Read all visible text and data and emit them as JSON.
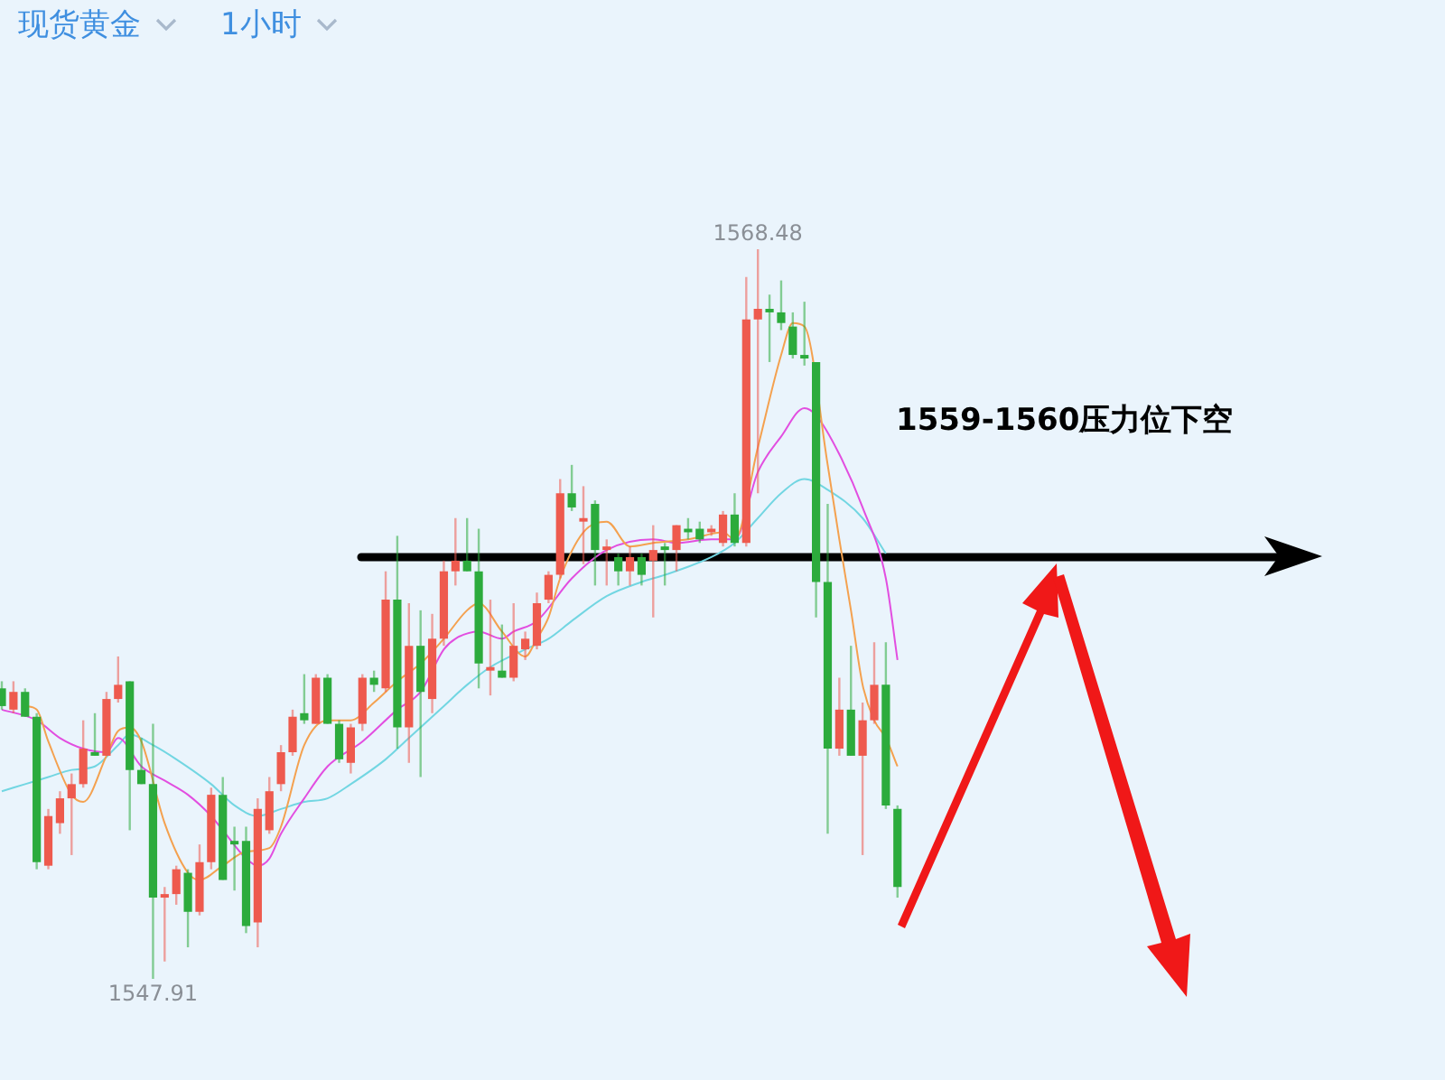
{
  "chart_data": {
    "type": "candlestick",
    "title": "现货黄金",
    "subtitle": "1小时",
    "categories": [
      null,
      null,
      null,
      null,
      null,
      null,
      null,
      null,
      null,
      null,
      null,
      null,
      null,
      null,
      null,
      null,
      null,
      null,
      null,
      null,
      null,
      null,
      null,
      null,
      null,
      null,
      null,
      null,
      null,
      null,
      null,
      null,
      null,
      null,
      null,
      null,
      null,
      null,
      null,
      null,
      null,
      null,
      null,
      null,
      null,
      null,
      null,
      null,
      null,
      null,
      null,
      null,
      null,
      null,
      null,
      null,
      null,
      null,
      null,
      null,
      null,
      null,
      null,
      null,
      null,
      null,
      null,
      null,
      null,
      null,
      null,
      null,
      null,
      null,
      null,
      null,
      null,
      null
    ],
    "ohlc": [
      [
        1556.1,
        1556.3,
        1555.5,
        1555.6
      ],
      [
        1555.5,
        1556.3,
        1555.4,
        1556.0
      ],
      [
        1556.0,
        1556.1,
        1555.3,
        1555.3
      ],
      [
        1555.3,
        1555.4,
        1551.0,
        1551.2
      ],
      [
        1551.1,
        1552.7,
        1551.0,
        1552.5
      ],
      [
        1552.3,
        1553.2,
        1552.0,
        1553.0
      ],
      [
        1553.0,
        1553.7,
        1551.4,
        1553.4
      ],
      [
        1553.4,
        1555.2,
        1553.3,
        1554.4
      ],
      [
        1554.3,
        1555.4,
        1554.2,
        1554.2
      ],
      [
        1554.2,
        1556.0,
        1554.2,
        1555.8
      ],
      [
        1555.8,
        1557.0,
        1555.7,
        1556.2
      ],
      [
        1556.3,
        1556.3,
        1552.1,
        1553.8
      ],
      [
        1553.8,
        1554.7,
        1553.4,
        1553.4
      ],
      [
        1553.4,
        1555.1,
        1547.91,
        1550.2
      ],
      [
        1550.2,
        1550.5,
        1548.4,
        1550.3
      ],
      [
        1550.3,
        1551.1,
        1550.0,
        1551.0
      ],
      [
        1550.9,
        1551.0,
        1548.8,
        1549.8
      ],
      [
        1549.8,
        1551.7,
        1549.7,
        1551.2
      ],
      [
        1551.2,
        1553.3,
        1551.0,
        1553.1
      ],
      [
        1553.1,
        1553.6,
        1550.7,
        1550.7
      ],
      [
        1551.8,
        1552.2,
        1550.4,
        1551.7
      ],
      [
        1551.8,
        1552.2,
        1549.2,
        1549.4
      ],
      [
        1549.5,
        1553.0,
        1548.8,
        1552.7
      ],
      [
        1552.1,
        1553.6,
        1552.0,
        1553.2
      ],
      [
        1553.4,
        1554.5,
        1553.2,
        1554.3
      ],
      [
        1554.3,
        1555.5,
        1554.2,
        1555.3
      ],
      [
        1555.4,
        1556.5,
        1555.1,
        1555.2
      ],
      [
        1555.1,
        1556.5,
        1555.1,
        1556.4
      ],
      [
        1556.4,
        1556.5,
        1555.1,
        1555.1
      ],
      [
        1555.1,
        1555.2,
        1554.0,
        1554.1
      ],
      [
        1554.0,
        1555.1,
        1553.7,
        1555.0
      ],
      [
        1555.1,
        1556.5,
        1554.9,
        1556.4
      ],
      [
        1556.4,
        1556.6,
        1556.0,
        1556.2
      ],
      [
        1556.1,
        1559.4,
        1556.0,
        1558.6
      ],
      [
        1558.6,
        1560.4,
        1554.4,
        1555.0
      ],
      [
        1555.0,
        1558.5,
        1554.0,
        1557.3
      ],
      [
        1557.3,
        1558.3,
        1553.6,
        1556.0
      ],
      [
        1555.8,
        1558.2,
        1555.4,
        1557.5
      ],
      [
        1557.5,
        1559.7,
        1557.3,
        1559.4
      ],
      [
        1559.4,
        1560.9,
        1559.0,
        1559.7
      ],
      [
        1559.7,
        1560.9,
        1559.4,
        1559.4
      ],
      [
        1559.4,
        1560.6,
        1556.1,
        1556.8
      ],
      [
        1556.6,
        1558.6,
        1555.9,
        1556.7
      ],
      [
        1556.6,
        1557.9,
        1556.4,
        1556.4
      ],
      [
        1556.4,
        1558.5,
        1556.3,
        1557.3
      ],
      [
        1557.2,
        1557.7,
        1556.9,
        1557.5
      ],
      [
        1557.3,
        1558.8,
        1557.2,
        1558.5
      ],
      [
        1558.6,
        1559.4,
        1558.5,
        1559.3
      ],
      [
        1559.3,
        1562.0,
        1559.2,
        1561.6
      ],
      [
        1561.6,
        1562.4,
        1561.1,
        1561.2
      ],
      [
        1560.8,
        1561.8,
        1559.6,
        1560.9
      ],
      [
        1561.3,
        1561.4,
        1559.0,
        1560.0
      ],
      [
        1560.0,
        1560.3,
        1559.0,
        1560.1
      ],
      [
        1559.8,
        1559.9,
        1559.0,
        1559.4
      ],
      [
        1559.4,
        1560.1,
        1559.0,
        1559.8
      ],
      [
        1559.8,
        1559.9,
        1559.0,
        1559.3
      ],
      [
        1559.7,
        1560.7,
        1558.1,
        1560.0
      ],
      [
        1560.1,
        1560.2,
        1559.0,
        1560.0
      ],
      [
        1560.0,
        1560.7,
        1559.4,
        1560.7
      ],
      [
        1560.6,
        1560.9,
        1560.3,
        1560.5
      ],
      [
        1560.6,
        1560.8,
        1560.2,
        1560.3
      ],
      [
        1560.5,
        1560.7,
        1560.4,
        1560.6
      ],
      [
        1560.2,
        1561.1,
        1560.1,
        1561.0
      ],
      [
        1561.0,
        1561.6,
        1560.1,
        1560.2
      ],
      [
        1560.2,
        1567.7,
        1560.1,
        1566.5
      ],
      [
        1566.5,
        1568.48,
        1561.6,
        1566.8
      ],
      [
        1566.8,
        1567.2,
        1565.3,
        1566.7
      ],
      [
        1566.7,
        1567.6,
        1566.2,
        1566.4
      ],
      [
        1566.3,
        1566.7,
        1565.4,
        1565.5
      ],
      [
        1565.5,
        1567.0,
        1565.2,
        1565.4
      ],
      [
        1565.3,
        1565.3,
        1558.1,
        1559.1
      ],
      [
        1559.1,
        1561.3,
        1552.0,
        1554.4
      ],
      [
        1554.4,
        1556.4,
        1554.2,
        1555.5
      ],
      [
        1555.5,
        1557.3,
        1554.2,
        1554.2
      ],
      [
        1554.2,
        1555.7,
        1551.4,
        1555.2
      ],
      [
        1555.2,
        1557.4,
        1555.1,
        1556.2
      ],
      [
        1556.2,
        1557.4,
        1552.7,
        1552.8
      ],
      [
        1552.7,
        1552.8,
        1550.2,
        1550.5
      ]
    ],
    "colors": [
      "#2cab3c",
      "#ee5a4e",
      "#2cab3c",
      "#2cab3c",
      "#ee5a4e",
      "#ee5a4e",
      "#ee5a4e",
      "#ee5a4e",
      "#2cab3c",
      "#ee5a4e",
      "#ee5a4e",
      "#2cab3c",
      "#2cab3c",
      "#2cab3c",
      "#ee5a4e",
      "#ee5a4e",
      "#2cab3c",
      "#ee5a4e",
      "#ee5a4e",
      "#2cab3c",
      "#2cab3c",
      "#2cab3c",
      "#ee5a4e",
      "#ee5a4e",
      "#ee5a4e",
      "#ee5a4e",
      "#2cab3c",
      "#ee5a4e",
      "#2cab3c",
      "#2cab3c",
      "#ee5a4e",
      "#ee5a4e",
      "#2cab3c",
      "#ee5a4e",
      "#2cab3c",
      "#ee5a4e",
      "#2cab3c",
      "#ee5a4e",
      "#ee5a4e",
      "#ee5a4e",
      "#2cab3c",
      "#2cab3c",
      "#ee5a4e",
      "#2cab3c",
      "#ee5a4e",
      "#ee5a4e",
      "#ee5a4e",
      "#ee5a4e",
      "#ee5a4e",
      "#2cab3c",
      "#ee5a4e",
      "#2cab3c",
      "#ee5a4e",
      "#2cab3c",
      "#ee5a4e",
      "#2cab3c",
      "#ee5a4e",
      "#2cab3c",
      "#ee5a4e",
      "#2cab3c",
      "#2cab3c",
      "#ee5a4e",
      "#ee5a4e",
      "#2cab3c",
      "#ee5a4e",
      "#ee5a4e",
      "#2cab3c",
      "#2cab3c",
      "#2cab3c",
      "#2cab3c",
      "#2cab3c",
      "#2cab3c",
      "#ee5a4e",
      "#2cab3c",
      "#ee5a4e",
      "#ee5a4e",
      "#2cab3c",
      "#2cab3c"
    ],
    "series": [
      {
        "type": "line",
        "color": "#f4a14f",
        "values": [
          null,
          null,
          1555.6,
          1555.5,
          1554.6,
          null,
          1553.1,
          1552.9,
          null,
          1554.2,
          1554.9,
          1555.0,
          1554.6,
          null,
          1552.3,
          null,
          1550.9,
          1550.7,
          null,
          1551.1,
          null,
          1551.5,
          null,
          1551.6,
          1552.2,
          null,
          1554.5,
          null,
          1555.2,
          null,
          1555.2,
          null,
          1555.7,
          null,
          1556.3,
          null,
          1556.8,
          null,
          1557.5,
          null,
          1558.3,
          1558.5,
          null,
          1557.7,
          null,
          1557.0,
          1557.5,
          1558.1,
          1559.2,
          null,
          1560.5,
          null,
          1560.8,
          null,
          1560.1,
          null,
          1560.2,
          null,
          null,
          1560.3,
          null,
          null,
          1560.5,
          1560.3,
          null,
          1562.9,
          null,
          1565.5,
          1566.4,
          1566.3,
          null,
          1562.4,
          1560.3,
          1558.3,
          1556.2,
          1555.2,
          1554.7,
          1553.9
        ]
      },
      {
        "type": "line",
        "color": "#e24ee0",
        "values": [
          1555.5,
          null,
          null,
          1555.2,
          null,
          1554.7,
          null,
          1554.4,
          null,
          1554.3,
          1554.7,
          null,
          1553.9,
          null,
          1553.5,
          null,
          1553.1,
          null,
          1552.5,
          1552.1,
          null,
          1551.3,
          1551.1,
          1551.3,
          1552.0,
          null,
          1553.0,
          null,
          1553.9,
          null,
          null,
          1554.6,
          null,
          null,
          1555.5,
          null,
          1556.0,
          null,
          1557.2,
          1557.5,
          null,
          1557.7,
          null,
          1557.5,
          1557.7,
          null,
          1558.0,
          null,
          null,
          1559.2,
          null,
          null,
          1560.0,
          null,
          null,
          null,
          1560.3,
          null,
          1560.2,
          null,
          null,
          1560.3,
          null,
          1560.3,
          null,
          1562.2,
          null,
          1563.2,
          null,
          1564.0,
          1563.8,
          null,
          1562.7,
          null,
          1561.2,
          null,
          1559.2,
          1556.9
        ]
      },
      {
        "type": "line",
        "color": "#72d6e2",
        "values": [
          1553.2,
          null,
          1553.4,
          null,
          1553.6,
          null,
          1553.8,
          null,
          1553.9,
          null,
          1554.5,
          1554.8,
          null,
          1554.5,
          null,
          1554.1,
          null,
          null,
          1553.4,
          null,
          1552.8,
          null,
          1552.5,
          null,
          1552.7,
          null,
          1552.9,
          null,
          1553.0,
          null,
          1553.4,
          null,
          null,
          1554.1,
          null,
          1554.7,
          null,
          null,
          1555.6,
          null,
          1556.2,
          null,
          1556.7,
          null,
          null,
          1557.2,
          null,
          1557.5,
          null,
          1558.0,
          null,
          null,
          1558.7,
          null,
          null,
          1559.1,
          null,
          1559.3,
          null,
          null,
          null,
          1559.8,
          null,
          1560.2,
          null,
          1560.9,
          null,
          1561.6,
          null,
          1562.0,
          null,
          1561.7,
          null,
          null,
          1560.9,
          null,
          1559.9,
          null
        ]
      }
    ],
    "ref_lines": [
      {
        "axis": "y",
        "value": 1559.8,
        "label": "1559-1560压力位下空",
        "color": "#000000"
      }
    ],
    "annotations": [
      {
        "text": "1568.48",
        "y": 1568.48
      },
      {
        "text": "1547.91",
        "y": 1547.91
      }
    ],
    "legend": false,
    "grid": false,
    "tick_labels": false
  }
}
